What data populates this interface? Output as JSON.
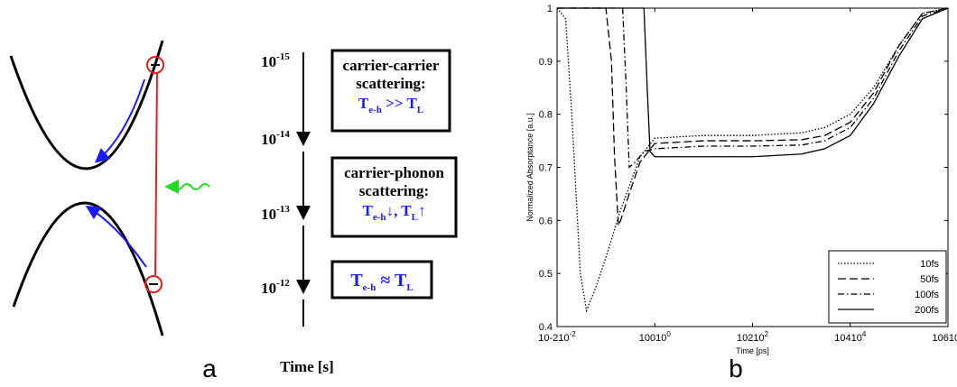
{
  "panel_a": {
    "label": "a",
    "time_ticks": [
      {
        "base": "10",
        "exponent": "-15"
      },
      {
        "base": "10",
        "exponent": "-14"
      },
      {
        "base": "10",
        "exponent": "-13"
      },
      {
        "base": "10",
        "exponent": "-12"
      }
    ],
    "time_label": "Time [s]",
    "boxes": [
      {
        "lines": [
          "carrier-carrier",
          "scattering:"
        ],
        "formula": [
          "T",
          "e-h",
          " >> T",
          "L"
        ]
      },
      {
        "lines": [
          "carrier-phonon",
          "scattering:"
        ],
        "formula": [
          "T",
          "e-h",
          "↓, T",
          "L",
          "↑"
        ]
      },
      {
        "lines": [],
        "formula": [
          "T",
          "e-h",
          " ≈ T",
          "L"
        ]
      }
    ]
  },
  "chart_data": {
    "type": "line",
    "label": "b",
    "xlabel": "Time [ps]",
    "ylabel": "Normalized Absorptance [a.u.]",
    "xscale": "log",
    "xlim": [
      0.01,
      1000000
    ],
    "xticks": [
      {
        "value": 0.01,
        "label": "10-2"
      },
      {
        "value": 1,
        "label": "100"
      },
      {
        "value": 100,
        "label": "102"
      },
      {
        "value": 10000,
        "label": "104"
      },
      {
        "value": 1000000,
        "label": "106"
      }
    ],
    "ylim": [
      0.4,
      1
    ],
    "yticks": [
      0.4,
      0.5,
      0.6,
      0.7,
      0.8,
      0.9,
      1
    ],
    "legend_position": "lower-right",
    "series": [
      {
        "name": "10fs",
        "color": "#000000",
        "dash": "dotted",
        "x": [
          0.01,
          0.015,
          0.02,
          0.03,
          0.04,
          0.06,
          0.1,
          0.2,
          0.5,
          1,
          10,
          100,
          1000,
          3000,
          10000,
          30000,
          100000,
          300000,
          1000000
        ],
        "values": [
          1,
          0.98,
          0.8,
          0.5,
          0.43,
          0.47,
          0.53,
          0.62,
          0.72,
          0.755,
          0.76,
          0.76,
          0.765,
          0.775,
          0.8,
          0.85,
          0.93,
          0.99,
          1
        ]
      },
      {
        "name": "50fs",
        "color": "#000000",
        "dash": "dashed",
        "x": [
          0.01,
          0.1,
          0.13,
          0.15,
          0.18,
          0.2,
          0.3,
          0.5,
          1,
          10,
          100,
          1000,
          3000,
          10000,
          30000,
          100000,
          300000,
          1000000
        ],
        "values": [
          1,
          1,
          0.9,
          0.72,
          0.59,
          0.6,
          0.65,
          0.71,
          0.745,
          0.75,
          0.75,
          0.752,
          0.76,
          0.785,
          0.84,
          0.93,
          0.99,
          1
        ]
      },
      {
        "name": "100fs",
        "color": "#000000",
        "dash": "dashdot",
        "x": [
          0.01,
          0.22,
          0.26,
          0.3,
          0.4,
          0.6,
          1,
          10,
          100,
          1000,
          3000,
          10000,
          30000,
          100000,
          300000,
          1000000
        ],
        "values": [
          1,
          1,
          0.85,
          0.7,
          0.71,
          0.73,
          0.735,
          0.74,
          0.74,
          0.742,
          0.75,
          0.775,
          0.83,
          0.92,
          0.985,
          1
        ]
      },
      {
        "name": "200fs",
        "color": "#000000",
        "dash": "solid",
        "x": [
          0.01,
          0.6,
          0.7,
          0.8,
          1,
          2,
          10,
          100,
          1000,
          3000,
          10000,
          30000,
          100000,
          300000,
          1000000
        ],
        "values": [
          1,
          1,
          0.85,
          0.73,
          0.72,
          0.72,
          0.72,
          0.72,
          0.725,
          0.735,
          0.76,
          0.82,
          0.91,
          0.98,
          1
        ]
      }
    ]
  }
}
